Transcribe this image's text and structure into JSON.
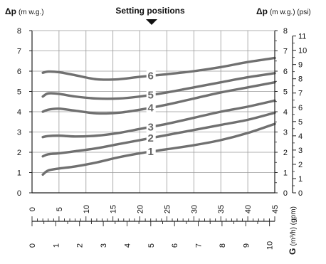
{
  "chart_data": {
    "type": "line",
    "title": "Setting positions",
    "ylabel_left": "Δp (m w.g.)",
    "ylabel_left_bold": "Δp",
    "ylabel_left_unit": "(m w.g.)",
    "ylabel_right_bold": "Δp",
    "ylabel_right_unit": "(m w.g.) (psi)",
    "xlabel_bottom": "G (m³/h) (gpm)",
    "xlabel_bold": "G",
    "xlabel_unit": "(m³/h) (gpm)",
    "ylim": [
      0,
      8
    ],
    "xlim_gpm": [
      0,
      45
    ],
    "grid": true,
    "y_ticks_mwg": [
      "0",
      "1",
      "2",
      "3",
      "4",
      "5",
      "6",
      "7",
      "8"
    ],
    "y_ticks_psi": [
      "0",
      "1",
      "2",
      "3",
      "4",
      "5",
      "6",
      "7",
      "8",
      "9",
      "10",
      "11"
    ],
    "x_ticks_gpm": [
      "0",
      "5",
      "10",
      "15",
      "20",
      "25",
      "30",
      "35",
      "40",
      "45"
    ],
    "x_ticks_m3h": [
      "0",
      "1",
      "2",
      "3",
      "4",
      "5",
      "6",
      "7",
      "8",
      "9",
      "10"
    ],
    "series": [
      {
        "name": "1",
        "label_at_gpm": 22,
        "x_gpm": [
          2,
          3,
          5,
          8,
          12,
          16,
          20,
          25,
          30,
          35,
          40,
          45
        ],
        "y_mwg": [
          0.9,
          1.1,
          1.2,
          1.3,
          1.5,
          1.75,
          1.95,
          2.15,
          2.35,
          2.6,
          2.95,
          3.4
        ]
      },
      {
        "name": "2",
        "label_at_gpm": 22,
        "x_gpm": [
          2,
          3,
          5,
          8,
          12,
          16,
          20,
          25,
          30,
          35,
          40,
          45
        ],
        "y_mwg": [
          1.8,
          1.9,
          1.95,
          2.05,
          2.2,
          2.4,
          2.6,
          2.85,
          3.1,
          3.35,
          3.6,
          3.95
        ]
      },
      {
        "name": "3",
        "label_at_gpm": 22,
        "x_gpm": [
          2,
          3,
          5,
          8,
          12,
          16,
          20,
          25,
          30,
          35,
          40,
          45
        ],
        "y_mwg": [
          2.75,
          2.8,
          2.82,
          2.78,
          2.82,
          2.95,
          3.15,
          3.4,
          3.7,
          4.0,
          4.25,
          4.55
        ]
      },
      {
        "name": "4",
        "label_at_gpm": 22,
        "x_gpm": [
          2,
          3,
          5,
          8,
          12,
          16,
          20,
          25,
          30,
          35,
          40,
          45
        ],
        "y_mwg": [
          4.0,
          4.1,
          4.15,
          4.05,
          3.92,
          3.95,
          4.1,
          4.35,
          4.65,
          4.95,
          5.2,
          5.45
        ]
      },
      {
        "name": "5",
        "label_at_gpm": 22,
        "x_gpm": [
          2,
          3,
          5,
          8,
          12,
          16,
          20,
          25,
          30,
          35,
          40,
          45
        ],
        "y_mwg": [
          4.75,
          4.9,
          4.88,
          4.75,
          4.65,
          4.65,
          4.75,
          4.95,
          5.2,
          5.45,
          5.7,
          5.9
        ]
      },
      {
        "name": "6",
        "label_at_gpm": 22,
        "x_gpm": [
          2,
          3,
          5,
          8,
          12,
          16,
          20,
          25,
          30,
          35,
          40,
          45
        ],
        "y_mwg": [
          5.92,
          5.98,
          5.95,
          5.8,
          5.6,
          5.6,
          5.72,
          5.85,
          6.0,
          6.2,
          6.45,
          6.65
        ]
      }
    ],
    "colors": {
      "curve": "#707070",
      "grid": "#999999",
      "axis": "#222222",
      "label": "#666666"
    }
  }
}
